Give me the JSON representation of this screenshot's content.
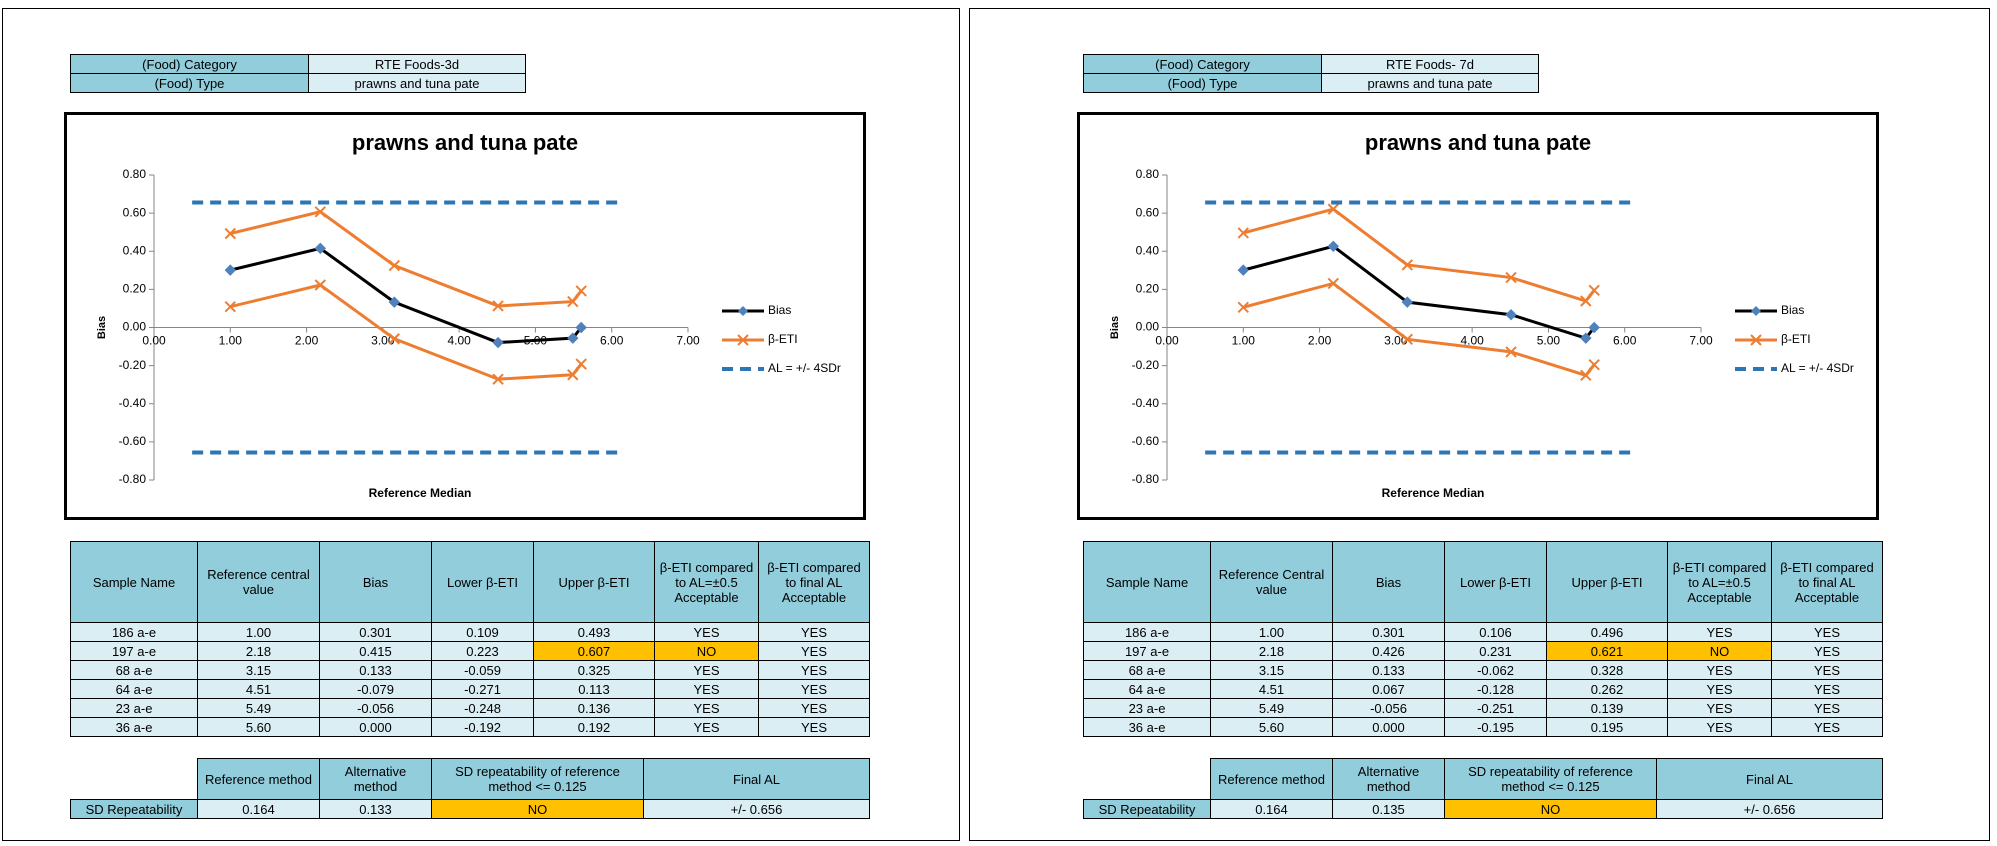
{
  "panels": [
    {
      "header": {
        "rows": [
          [
            "(Food) Category",
            "RTE Foods-3d"
          ],
          [
            "(Food) Type",
            "prawns and tuna pate"
          ]
        ]
      },
      "chart": {
        "type": "line",
        "title": "prawns and tuna pate",
        "x_label": "Reference Median",
        "y_label": "Bias",
        "legend": "right",
        "xlim": [
          0,
          7
        ],
        "xticks": [
          {
            "value": 0,
            "label": "0.00"
          },
          {
            "value": 1,
            "label": "1.00"
          },
          {
            "value": 2,
            "label": "2.00"
          },
          {
            "value": 3,
            "label": "3.00"
          },
          {
            "value": 4,
            "label": "4.00"
          },
          {
            "value": 5,
            "label": "5.00"
          },
          {
            "value": 6,
            "label": "6.00"
          },
          {
            "value": 7,
            "label": "7.00"
          }
        ],
        "ylim": [
          -0.8,
          0.8
        ],
        "yticks": [
          {
            "value": 0.8,
            "label": "0.80"
          },
          {
            "value": 0.6,
            "label": "0.60"
          },
          {
            "value": 0.4,
            "label": "0.40"
          },
          {
            "value": 0.2,
            "label": "0.20"
          },
          {
            "value": 0,
            "label": "0.00"
          },
          {
            "value": -0.2,
            "label": "-0.20"
          },
          {
            "value": -0.4,
            "label": "-0.40"
          },
          {
            "value": -0.6,
            "label": "-0.60"
          },
          {
            "value": -0.8,
            "label": "-0.80"
          }
        ],
        "series": [
          {
            "name": "Bias",
            "color": "#000000",
            "marker": "diamond",
            "marker_color": "#4f81bd",
            "x": [
              1.0,
              2.18,
              3.15,
              4.51,
              5.49,
              5.6
            ],
            "values": [
              0.301,
              0.415,
              0.133,
              -0.079,
              -0.056,
              0.0
            ]
          },
          {
            "name": "β-ETI",
            "color": "#ed7d31",
            "marker": "x",
            "x": [
              1.0,
              2.18,
              3.15,
              4.51,
              5.49,
              5.6
            ],
            "lower": [
              0.109,
              0.223,
              -0.059,
              -0.271,
              -0.248,
              -0.192
            ],
            "upper": [
              0.493,
              0.607,
              0.325,
              0.113,
              0.136,
              0.192
            ]
          },
          {
            "name": "AL = +/- 4SDr",
            "color": "#2e75b6",
            "dashed": true,
            "x": [
              0.5,
              6.1
            ],
            "lower": [
              -0.656,
              -0.656
            ],
            "upper": [
              0.656,
              0.656
            ]
          }
        ]
      },
      "table": {
        "header": [
          "Sample Name",
          "Reference central value",
          "Bias",
          "Lower β-ETI",
          "Upper β-ETI",
          "β-ETI compared to AL=±0.5 Acceptable",
          "β-ETI compared to final AL Acceptable"
        ],
        "rows": [
          [
            "186 a-e",
            "1.00",
            "0.301",
            "0.109",
            "0.493",
            "YES",
            "YES"
          ],
          [
            "197 a-e",
            "2.18",
            "0.415",
            "0.223",
            "0.607",
            "NO",
            "YES"
          ],
          [
            "68 a-e",
            "3.15",
            "0.133",
            "-0.059",
            "0.325",
            "YES",
            "YES"
          ],
          [
            "64 a-e",
            "4.51",
            "-0.079",
            "-0.271",
            "0.113",
            "YES",
            "YES"
          ],
          [
            "23 a-e",
            "5.49",
            "-0.056",
            "-0.248",
            "0.136",
            "YES",
            "YES"
          ],
          [
            "36 a-e",
            "5.60",
            "0.000",
            "-0.192",
            "0.192",
            "YES",
            "YES"
          ]
        ],
        "highlight": [
          [
            1,
            4
          ],
          [
            1,
            5
          ]
        ]
      },
      "summary": {
        "header": [
          "Reference method",
          "Alternative method",
          "SD repeatability of reference method <= 0.125",
          "Final AL"
        ],
        "row": [
          "SD Repeatability",
          "0.164",
          "0.133",
          "NO",
          "+/- 0.656"
        ],
        "highlight": [
          3
        ]
      }
    },
    {
      "header": {
        "rows": [
          [
            "(Food) Category",
            "RTE Foods- 7d"
          ],
          [
            "(Food) Type",
            "prawns and tuna pate"
          ]
        ]
      },
      "chart": {
        "type": "line",
        "title": "prawns and tuna pate",
        "x_label": "Reference Median",
        "y_label": "Bias",
        "legend": "right",
        "xlim": [
          0,
          7
        ],
        "xticks": [
          {
            "value": 0,
            "label": "0.00"
          },
          {
            "value": 1,
            "label": "1.00"
          },
          {
            "value": 2,
            "label": "2.00"
          },
          {
            "value": 3,
            "label": "3.00"
          },
          {
            "value": 4,
            "label": "4.00"
          },
          {
            "value": 5,
            "label": "5.00"
          },
          {
            "value": 6,
            "label": "6.00"
          },
          {
            "value": 7,
            "label": "7.00"
          }
        ],
        "ylim": [
          -0.8,
          0.8
        ],
        "yticks": [
          {
            "value": 0.8,
            "label": "0.80"
          },
          {
            "value": 0.6,
            "label": "0.60"
          },
          {
            "value": 0.4,
            "label": "0.40"
          },
          {
            "value": 0.2,
            "label": "0.20"
          },
          {
            "value": 0,
            "label": "0.00"
          },
          {
            "value": -0.2,
            "label": "-0.20"
          },
          {
            "value": -0.4,
            "label": "-0.40"
          },
          {
            "value": -0.6,
            "label": "-0.60"
          },
          {
            "value": -0.8,
            "label": "-0.80"
          }
        ],
        "series": [
          {
            "name": "Bias",
            "color": "#000000",
            "marker": "diamond",
            "marker_color": "#4f81bd",
            "x": [
              1.0,
              2.18,
              3.15,
              4.51,
              5.49,
              5.6
            ],
            "values": [
              0.301,
              0.426,
              0.133,
              0.067,
              -0.056,
              0.0
            ]
          },
          {
            "name": "β-ETI",
            "color": "#ed7d31",
            "marker": "x",
            "x": [
              1.0,
              2.18,
              3.15,
              4.51,
              5.49,
              5.6
            ],
            "lower": [
              0.106,
              0.231,
              -0.062,
              -0.128,
              -0.251,
              -0.195
            ],
            "upper": [
              0.496,
              0.621,
              0.328,
              0.262,
              0.139,
              0.195
            ]
          },
          {
            "name": "AL = +/- 4SDr",
            "color": "#2e75b6",
            "dashed": true,
            "x": [
              0.5,
              6.1
            ],
            "lower": [
              -0.656,
              -0.656
            ],
            "upper": [
              0.656,
              0.656
            ]
          }
        ]
      },
      "table": {
        "header": [
          "Sample Name",
          "Reference Central value",
          "Bias",
          "Lower β-ETI",
          "Upper β-ETI",
          "β-ETI compared to AL=±0.5 Acceptable",
          "β-ETI compared to final AL Acceptable"
        ],
        "rows": [
          [
            "186 a-e",
            "1.00",
            "0.301",
            "0.106",
            "0.496",
            "YES",
            "YES"
          ],
          [
            "197 a-e",
            "2.18",
            "0.426",
            "0.231",
            "0.621",
            "NO",
            "YES"
          ],
          [
            "68 a-e",
            "3.15",
            "0.133",
            "-0.062",
            "0.328",
            "YES",
            "YES"
          ],
          [
            "64 a-e",
            "4.51",
            "0.067",
            "-0.128",
            "0.262",
            "YES",
            "YES"
          ],
          [
            "23 a-e",
            "5.49",
            "-0.056",
            "-0.251",
            "0.139",
            "YES",
            "YES"
          ],
          [
            "36 a-e",
            "5.60",
            "0.000",
            "-0.195",
            "0.195",
            "YES",
            "YES"
          ]
        ],
        "highlight": [
          [
            1,
            4
          ],
          [
            1,
            5
          ]
        ]
      },
      "summary": {
        "header": [
          "Reference method",
          "Alternative method",
          "SD repeatability of reference method <= 0.125",
          "Final AL"
        ],
        "row": [
          "SD Repeatability",
          "0.164",
          "0.135",
          "NO",
          "+/- 0.656"
        ],
        "highlight": [
          3
        ]
      }
    }
  ]
}
